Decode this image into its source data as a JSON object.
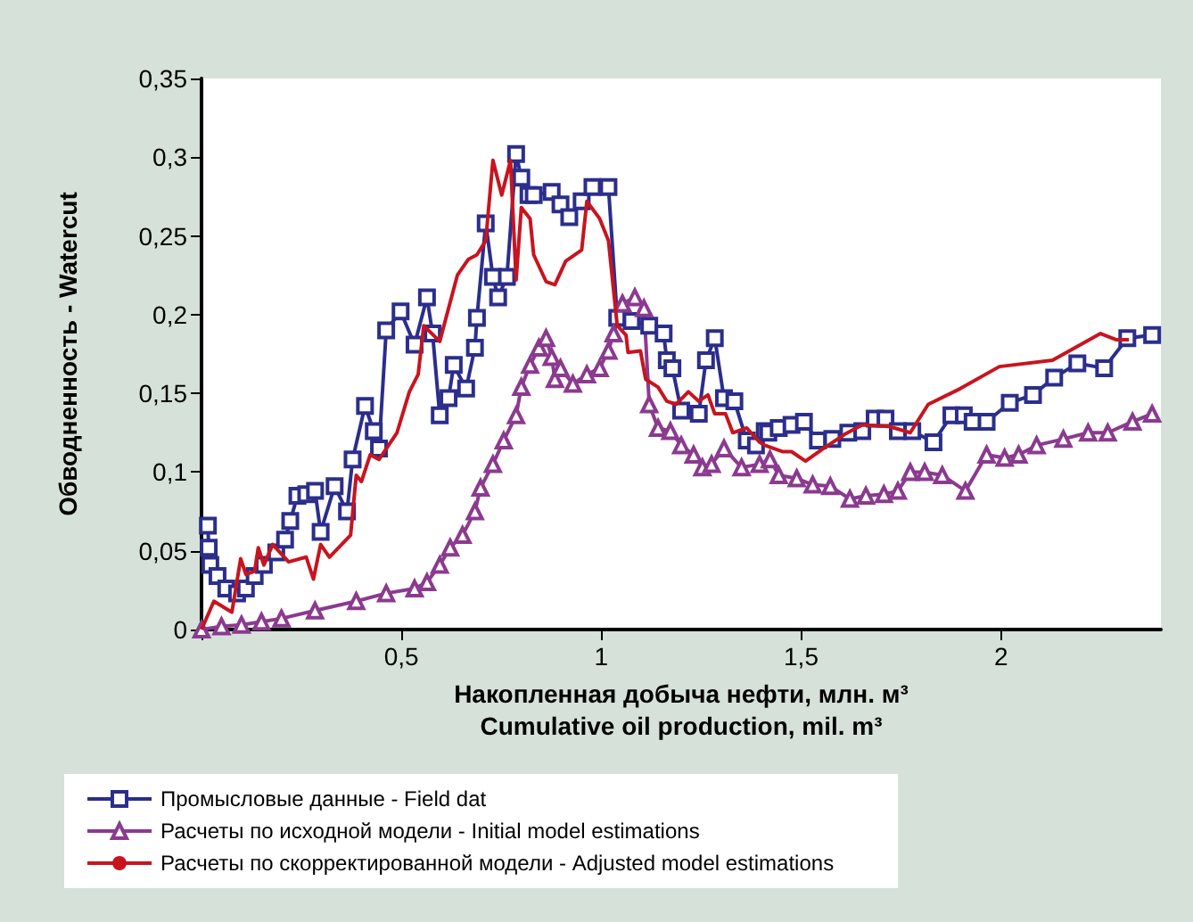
{
  "chart_data": {
    "type": "line",
    "xlabel": "Накопленная добыча нефти, млн. м³\nCumulative oil production, mil. m³",
    "ylabel": "Обводненность - Watercut",
    "xlim": [
      0,
      2.4
    ],
    "ylim": [
      0,
      0.35
    ],
    "xticks": [
      {
        "value": 0,
        "label": null
      },
      {
        "value": 0.5,
        "label": "0,5"
      },
      {
        "value": 1,
        "label": "1"
      },
      {
        "value": 1.5,
        "label": "1,5"
      },
      {
        "value": 2,
        "label": "2"
      }
    ],
    "yticks": [
      {
        "value": 0,
        "label": "0"
      },
      {
        "value": 0.05,
        "label": "0,05"
      },
      {
        "value": 0.1,
        "label": "0,1"
      },
      {
        "value": 0.15,
        "label": "0,15"
      },
      {
        "value": 0.2,
        "label": "0,2"
      },
      {
        "value": 0.25,
        "label": "0,25"
      },
      {
        "value": 0.3,
        "label": "0,3"
      },
      {
        "value": 0.35,
        "label": "0,35"
      }
    ],
    "grid": false,
    "legend": "bottom",
    "series": [
      {
        "name": "Промысловые данные - Field dat",
        "color": "#2b2e8c",
        "marker": "square",
        "x": [
          0.016,
          0.018,
          0.022,
          0.04,
          0.062,
          0.089,
          0.111,
          0.133,
          0.156,
          0.187,
          0.209,
          0.222,
          0.24,
          0.262,
          0.284,
          0.298,
          0.333,
          0.364,
          0.378,
          0.409,
          0.431,
          0.444,
          0.462,
          0.498,
          0.533,
          0.564,
          0.578,
          0.596,
          0.618,
          0.631,
          0.662,
          0.684,
          0.689,
          0.711,
          0.729,
          0.742,
          0.764,
          0.787,
          0.8,
          0.818,
          0.831,
          0.876,
          0.898,
          0.92,
          0.951,
          0.978,
          1.018,
          1.04,
          1.076,
          1.12,
          1.156,
          1.164,
          1.178,
          1.2,
          1.244,
          1.262,
          1.284,
          1.307,
          1.333,
          1.364,
          1.387,
          1.409,
          1.418,
          1.444,
          1.476,
          1.507,
          1.542,
          1.578,
          1.618,
          1.653,
          1.684,
          1.711,
          1.742,
          1.778,
          1.831,
          1.876,
          1.907,
          1.929,
          1.964,
          2.022,
          2.08,
          2.133,
          2.191,
          2.258,
          2.316,
          2.378
        ],
        "values": [
          0.066,
          0.052,
          0.041,
          0.034,
          0.026,
          0.023,
          0.026,
          0.034,
          0.041,
          0.049,
          0.057,
          0.069,
          0.085,
          0.086,
          0.088,
          0.062,
          0.091,
          0.075,
          0.108,
          0.142,
          0.126,
          0.115,
          0.19,
          0.202,
          0.181,
          0.211,
          0.188,
          0.136,
          0.147,
          0.168,
          0.153,
          0.179,
          0.198,
          0.258,
          0.224,
          0.211,
          0.224,
          0.302,
          0.287,
          0.276,
          0.276,
          0.278,
          0.27,
          0.262,
          0.272,
          0.281,
          0.281,
          0.198,
          0.196,
          0.193,
          0.188,
          0.171,
          0.166,
          0.139,
          0.137,
          0.171,
          0.185,
          0.147,
          0.145,
          0.12,
          0.117,
          0.126,
          0.125,
          0.128,
          0.13,
          0.132,
          0.12,
          0.121,
          0.125,
          0.126,
          0.134,
          0.134,
          0.126,
          0.126,
          0.119,
          0.136,
          0.136,
          0.132,
          0.132,
          0.144,
          0.149,
          0.16,
          0.169,
          0.166,
          0.185,
          0.187
        ]
      },
      {
        "name": "Расчеты по исходной модели - Initial model estimations",
        "color": "#8b3a8f",
        "marker": "triangle",
        "x": [
          0,
          0.05,
          0.1,
          0.15,
          0.2,
          0.284,
          0.387,
          0.462,
          0.533,
          0.564,
          0.596,
          0.622,
          0.653,
          0.684,
          0.698,
          0.729,
          0.756,
          0.787,
          0.8,
          0.822,
          0.844,
          0.862,
          0.876,
          0.884,
          0.898,
          0.929,
          0.964,
          0.996,
          1.018,
          1.031,
          1.053,
          1.084,
          1.107,
          1.12,
          1.142,
          1.173,
          1.2,
          1.231,
          1.253,
          1.276,
          1.307,
          1.351,
          1.396,
          1.422,
          1.444,
          1.489,
          1.529,
          1.573,
          1.622,
          1.662,
          1.707,
          1.742,
          1.773,
          1.809,
          1.853,
          1.911,
          1.964,
          2.009,
          2.044,
          2.089,
          2.156,
          2.218,
          2.267,
          2.329,
          2.378
        ],
        "values": [
          0,
          0.002,
          0.003,
          0.005,
          0.007,
          0.012,
          0.018,
          0.023,
          0.026,
          0.03,
          0.041,
          0.052,
          0.06,
          0.075,
          0.09,
          0.105,
          0.12,
          0.136,
          0.154,
          0.168,
          0.179,
          0.185,
          0.173,
          0.159,
          0.166,
          0.156,
          0.162,
          0.166,
          0.177,
          0.188,
          0.207,
          0.211,
          0.204,
          0.143,
          0.128,
          0.126,
          0.117,
          0.111,
          0.103,
          0.105,
          0.115,
          0.103,
          0.105,
          0.108,
          0.098,
          0.096,
          0.092,
          0.091,
          0.083,
          0.085,
          0.086,
          0.088,
          0.1,
          0.1,
          0.098,
          0.088,
          0.111,
          0.109,
          0.111,
          0.117,
          0.121,
          0.125,
          0.125,
          0.132,
          0.137
        ]
      },
      {
        "name": "Расчеты по скорректированной модели - Adjusted model estimations",
        "color": "#c8141e",
        "marker": "none",
        "x": [
          0,
          0.031,
          0.076,
          0.098,
          0.111,
          0.133,
          0.142,
          0.156,
          0.178,
          0.218,
          0.262,
          0.28,
          0.298,
          0.32,
          0.373,
          0.387,
          0.4,
          0.422,
          0.444,
          0.489,
          0.52,
          0.542,
          0.556,
          0.596,
          0.64,
          0.667,
          0.689,
          0.711,
          0.729,
          0.751,
          0.764,
          0.773,
          0.787,
          0.8,
          0.822,
          0.831,
          0.862,
          0.884,
          0.911,
          0.951,
          0.964,
          0.996,
          1.018,
          1.04,
          1.062,
          1.067,
          1.098,
          1.111,
          1.142,
          1.164,
          1.187,
          1.218,
          1.244,
          1.267,
          1.284,
          1.311,
          1.329,
          1.364,
          1.396,
          1.409,
          1.453,
          1.476,
          1.511,
          1.556,
          1.609,
          1.653,
          1.72,
          1.773,
          1.818,
          1.898,
          1.996,
          2.129,
          2.249,
          2.289,
          2.32
        ],
        "values": [
          0,
          0.018,
          0.011,
          0.045,
          0.035,
          0.037,
          0.052,
          0.041,
          0.054,
          0.043,
          0.046,
          0.032,
          0.054,
          0.046,
          0.06,
          0.098,
          0.094,
          0.111,
          0.108,
          0.125,
          0.151,
          0.162,
          0.193,
          0.183,
          0.225,
          0.235,
          0.238,
          0.247,
          0.298,
          0.276,
          0.289,
          0.298,
          0.222,
          0.268,
          0.261,
          0.238,
          0.221,
          0.219,
          0.234,
          0.241,
          0.272,
          0.261,
          0.247,
          0.193,
          0.187,
          0.176,
          0.177,
          0.159,
          0.154,
          0.145,
          0.143,
          0.151,
          0.145,
          0.149,
          0.137,
          0.137,
          0.125,
          0.128,
          0.119,
          0.117,
          0.113,
          0.113,
          0.107,
          0.115,
          0.124,
          0.13,
          0.129,
          0.125,
          0.143,
          0.153,
          0.167,
          0.171,
          0.188,
          0.184,
          0.184
        ]
      }
    ]
  }
}
